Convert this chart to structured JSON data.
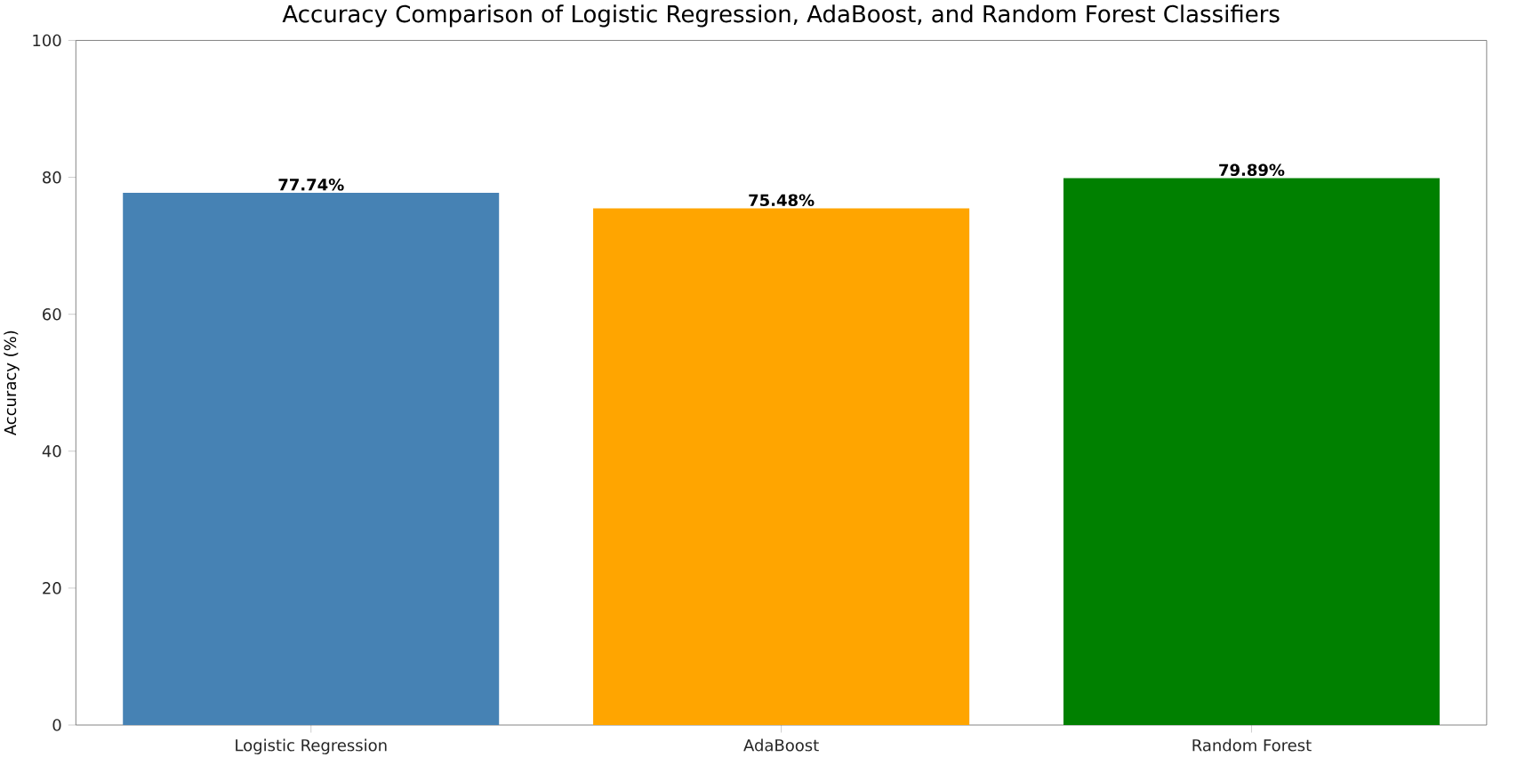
{
  "chart_data": {
    "type": "bar",
    "title": "Accuracy Comparison of Logistic Regression, AdaBoost, and Random Forest Classifiers",
    "ylabel": "Accuracy (%)",
    "categories": [
      "Logistic Regression",
      "AdaBoost",
      "Random Forest"
    ],
    "values": [
      77.74,
      75.48,
      79.89
    ],
    "colors": [
      "#4682b4",
      "#ffa500",
      "#008000"
    ],
    "value_labels": [
      "77.74%",
      "75.48%",
      "79.89%"
    ],
    "ylim": [
      0,
      100
    ],
    "yticks": [
      0,
      20,
      40,
      60,
      80,
      100
    ],
    "grid": false
  }
}
